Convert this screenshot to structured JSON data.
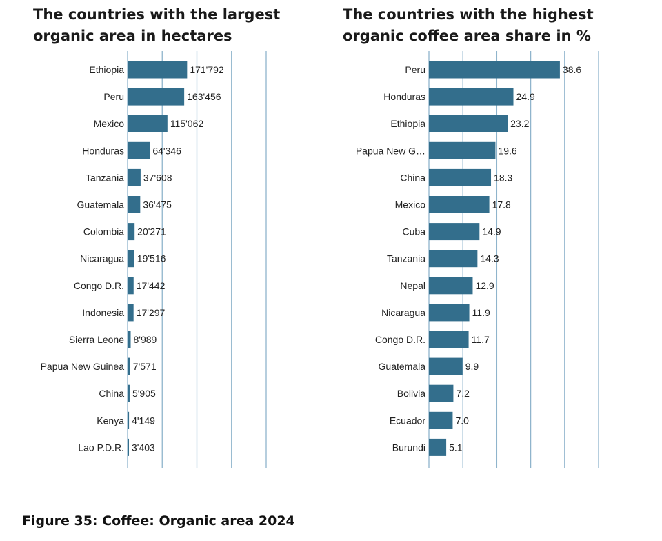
{
  "chart_data": [
    {
      "type": "bar",
      "orientation": "horizontal",
      "title_lines": [
        "The countries with the largest",
        "organic area in hectares"
      ],
      "categories": [
        "Ethiopia",
        "Peru",
        "Mexico",
        "Honduras",
        "Tanzania",
        "Guatemala",
        "Colombia",
        "Nicaragua",
        "Congo D.R.",
        "Indonesia",
        "Sierra Leone",
        "Papua New Guinea",
        "China",
        "Kenya",
        "Lao P.D.R."
      ],
      "values": [
        171792,
        163456,
        115062,
        64346,
        37608,
        36475,
        20271,
        19516,
        17442,
        17297,
        8989,
        7571,
        5905,
        4149,
        3403
      ],
      "value_labels": [
        "171'792",
        "163'456",
        "115'062",
        "64'346",
        "37'608",
        "36'475",
        "20'271",
        "19'516",
        "17'442",
        "17'297",
        "8'989",
        "7'571",
        "5'905",
        "4'149",
        "3'403"
      ],
      "xlim": [
        0,
        400000
      ],
      "gridlines": [
        0,
        100000,
        200000,
        300000,
        400000
      ],
      "bar_color": "#336e8c",
      "grid_color": "#8fb4cc"
    },
    {
      "type": "bar",
      "orientation": "horizontal",
      "title_lines": [
        "The countries with the highest",
        "organic coffee area share in %"
      ],
      "categories": [
        "Peru",
        "Honduras",
        "Ethiopia",
        "Papua New G…",
        "China",
        "Mexico",
        "Cuba",
        "Tanzania",
        "Nepal",
        "Nicaragua",
        "Congo D.R.",
        "Guatemala",
        "Bolivia",
        "Ecuador",
        "Burundi"
      ],
      "values": [
        38.6,
        24.9,
        23.2,
        19.6,
        18.3,
        17.8,
        14.9,
        14.3,
        12.9,
        11.9,
        11.7,
        9.9,
        7.2,
        7.0,
        5.1
      ],
      "value_labels": [
        "38.6",
        "24.9",
        "23.2",
        "19.6",
        "18.3",
        "17.8",
        "14.9",
        "14.3",
        "12.9",
        "11.9",
        "11.7",
        "9.9",
        "7.2",
        "7.0",
        "5.1"
      ],
      "xlim": [
        0,
        50
      ],
      "gridlines": [
        0,
        10,
        20,
        30,
        40,
        50
      ],
      "bar_color": "#336e8c",
      "grid_color": "#8fb4cc"
    }
  ],
  "caption": "Figure 35: Coffee: Organic area 2024"
}
